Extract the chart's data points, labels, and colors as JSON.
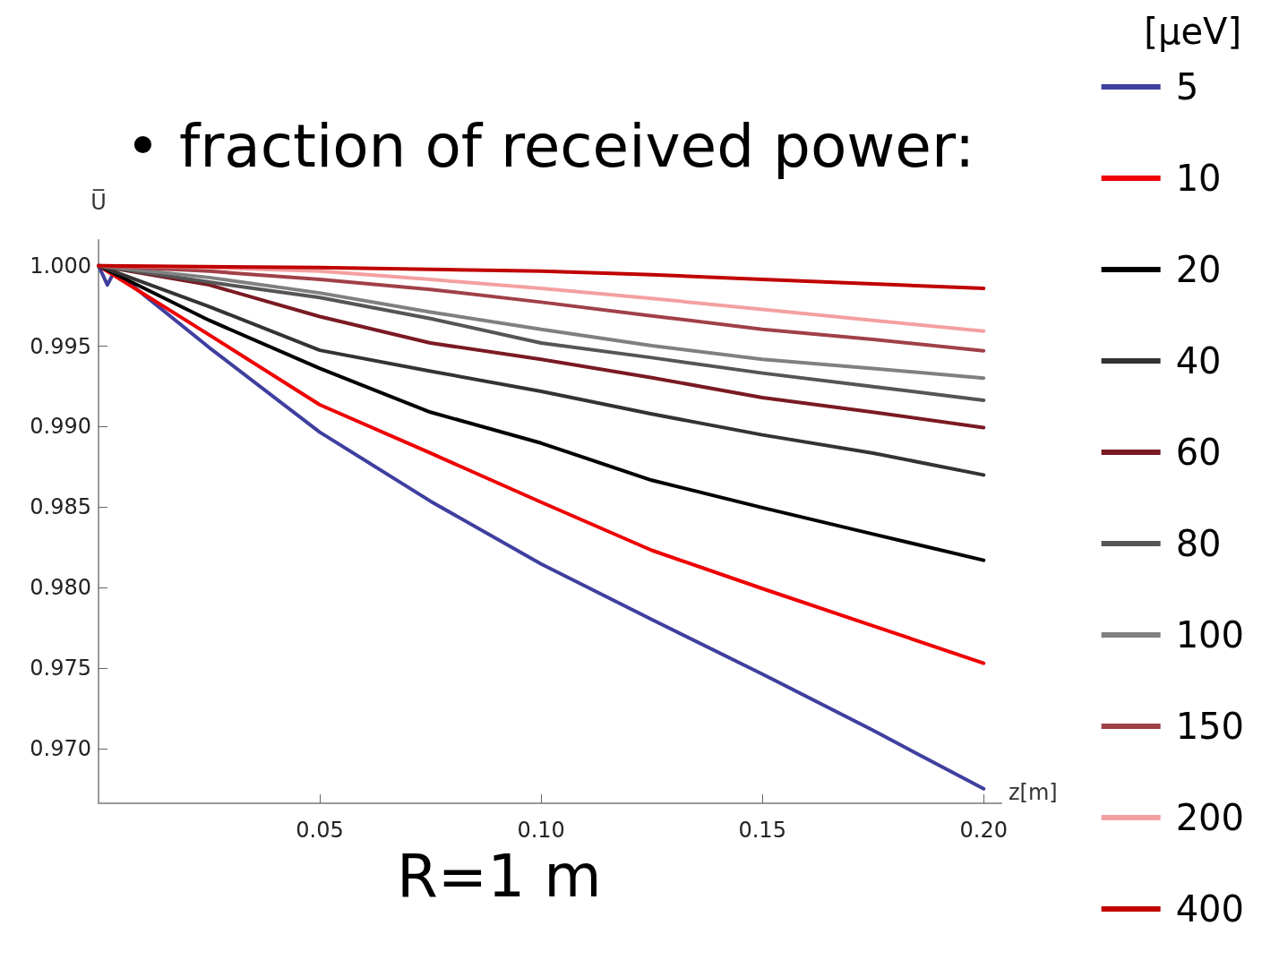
{
  "chart_data": {
    "type": "line",
    "title": "• fraction of received power:",
    "ylabel": "U̅",
    "xlabel": "z[m]",
    "legend_title": "[μeV]",
    "annotations": [
      "R=1 m"
    ],
    "xlim": [
      0,
      0.204
    ],
    "xticks": [
      {
        "value": 0.05,
        "label": "0.05"
      },
      {
        "value": 0.1,
        "label": "0.10"
      },
      {
        "value": 0.15,
        "label": "0.15"
      },
      {
        "value": 0.2,
        "label": "0.20"
      }
    ],
    "ylim": [
      0.9666,
      1.0016
    ],
    "yticks": [
      {
        "value": 0.97,
        "label": "0.970"
      },
      {
        "value": 0.975,
        "label": "0.975"
      },
      {
        "value": 0.98,
        "label": "0.980"
      },
      {
        "value": 0.985,
        "label": "0.985"
      },
      {
        "value": 0.99,
        "label": "0.990"
      },
      {
        "value": 0.995,
        "label": "0.995"
      },
      {
        "value": 1.0,
        "label": "1.000"
      }
    ],
    "grid": false,
    "legend": "right",
    "marker": "none",
    "line_style": "solid",
    "series": [
      {
        "name": "5",
        "color": "#3f3f9f",
        "x": [
          0,
          0.002,
          0.0036,
          0.025,
          0.05,
          0.075,
          0.1,
          0.125,
          0.15,
          0.175,
          0.2
        ],
        "values": [
          1.0,
          0.99881,
          0.99966,
          0.99492,
          0.98966,
          0.98537,
          0.98147,
          0.97802,
          0.97463,
          0.97113,
          0.9675
        ]
      },
      {
        "name": "10",
        "color": "#ee0000",
        "x": [
          0,
          0.025,
          0.05,
          0.075,
          0.1,
          0.125,
          0.15,
          0.175,
          0.2
        ],
        "values": [
          1.0,
          0.99571,
          0.99136,
          0.98836,
          0.98531,
          0.98232,
          0.97994,
          0.97763,
          0.9753
        ]
      },
      {
        "name": "20",
        "color": "#000000",
        "x": [
          0,
          0.025,
          0.05,
          0.075,
          0.1,
          0.125,
          0.15,
          0.175,
          0.2
        ],
        "values": [
          1.0,
          0.99661,
          0.99362,
          0.9909,
          0.98898,
          0.98667,
          0.98497,
          0.98333,
          0.9817
        ]
      },
      {
        "name": "40",
        "color": "#333333",
        "x": [
          0,
          0.025,
          0.05,
          0.075,
          0.1,
          0.125,
          0.15,
          0.175,
          0.2
        ],
        "values": [
          1.0,
          0.99746,
          0.99475,
          0.99345,
          0.9922,
          0.99079,
          0.98949,
          0.98836,
          0.987
        ]
      },
      {
        "name": "60",
        "color": "#7a1a22",
        "x": [
          0,
          0.025,
          0.05,
          0.075,
          0.1,
          0.125,
          0.15,
          0.175,
          0.2
        ],
        "values": [
          1.0,
          0.99881,
          0.99684,
          0.9952,
          0.99418,
          0.99305,
          0.99181,
          0.9909,
          0.98994
        ]
      },
      {
        "name": "80",
        "color": "#555555",
        "x": [
          0,
          0.025,
          0.05,
          0.075,
          0.1,
          0.125,
          0.15,
          0.175,
          0.2
        ],
        "values": [
          1.0,
          0.99898,
          0.99802,
          0.99672,
          0.9952,
          0.99429,
          0.99333,
          0.99249,
          0.99164
        ]
      },
      {
        "name": "100",
        "color": "#808080",
        "x": [
          0,
          0.025,
          0.05,
          0.075,
          0.1,
          0.125,
          0.15,
          0.175,
          0.2
        ],
        "values": [
          1.0,
          0.99927,
          0.99831,
          0.99712,
          0.99605,
          0.99503,
          0.99418,
          0.99362,
          0.99302
        ]
      },
      {
        "name": "150",
        "color": "#a04048",
        "x": [
          0,
          0.025,
          0.05,
          0.075,
          0.1,
          0.125,
          0.15,
          0.175,
          0.2
        ],
        "values": [
          1.0,
          0.99966,
          0.99915,
          0.99853,
          0.99774,
          0.99689,
          0.99605,
          0.99542,
          0.99472
        ]
      },
      {
        "name": "200",
        "color": "#f4a0a0",
        "x": [
          0,
          0.025,
          0.05,
          0.075,
          0.1,
          0.125,
          0.15,
          0.175,
          0.2
        ],
        "values": [
          1.0,
          0.99989,
          0.99966,
          0.99915,
          0.99859,
          0.99797,
          0.99729,
          0.99661,
          0.99594
        ]
      },
      {
        "name": "400",
        "color": "#c00000",
        "x": [
          0,
          0.05,
          0.1,
          0.125,
          0.15,
          0.175,
          0.2
        ],
        "values": [
          1.0,
          0.99989,
          0.99966,
          0.99944,
          0.99915,
          0.99887,
          0.99859
        ]
      }
    ]
  }
}
